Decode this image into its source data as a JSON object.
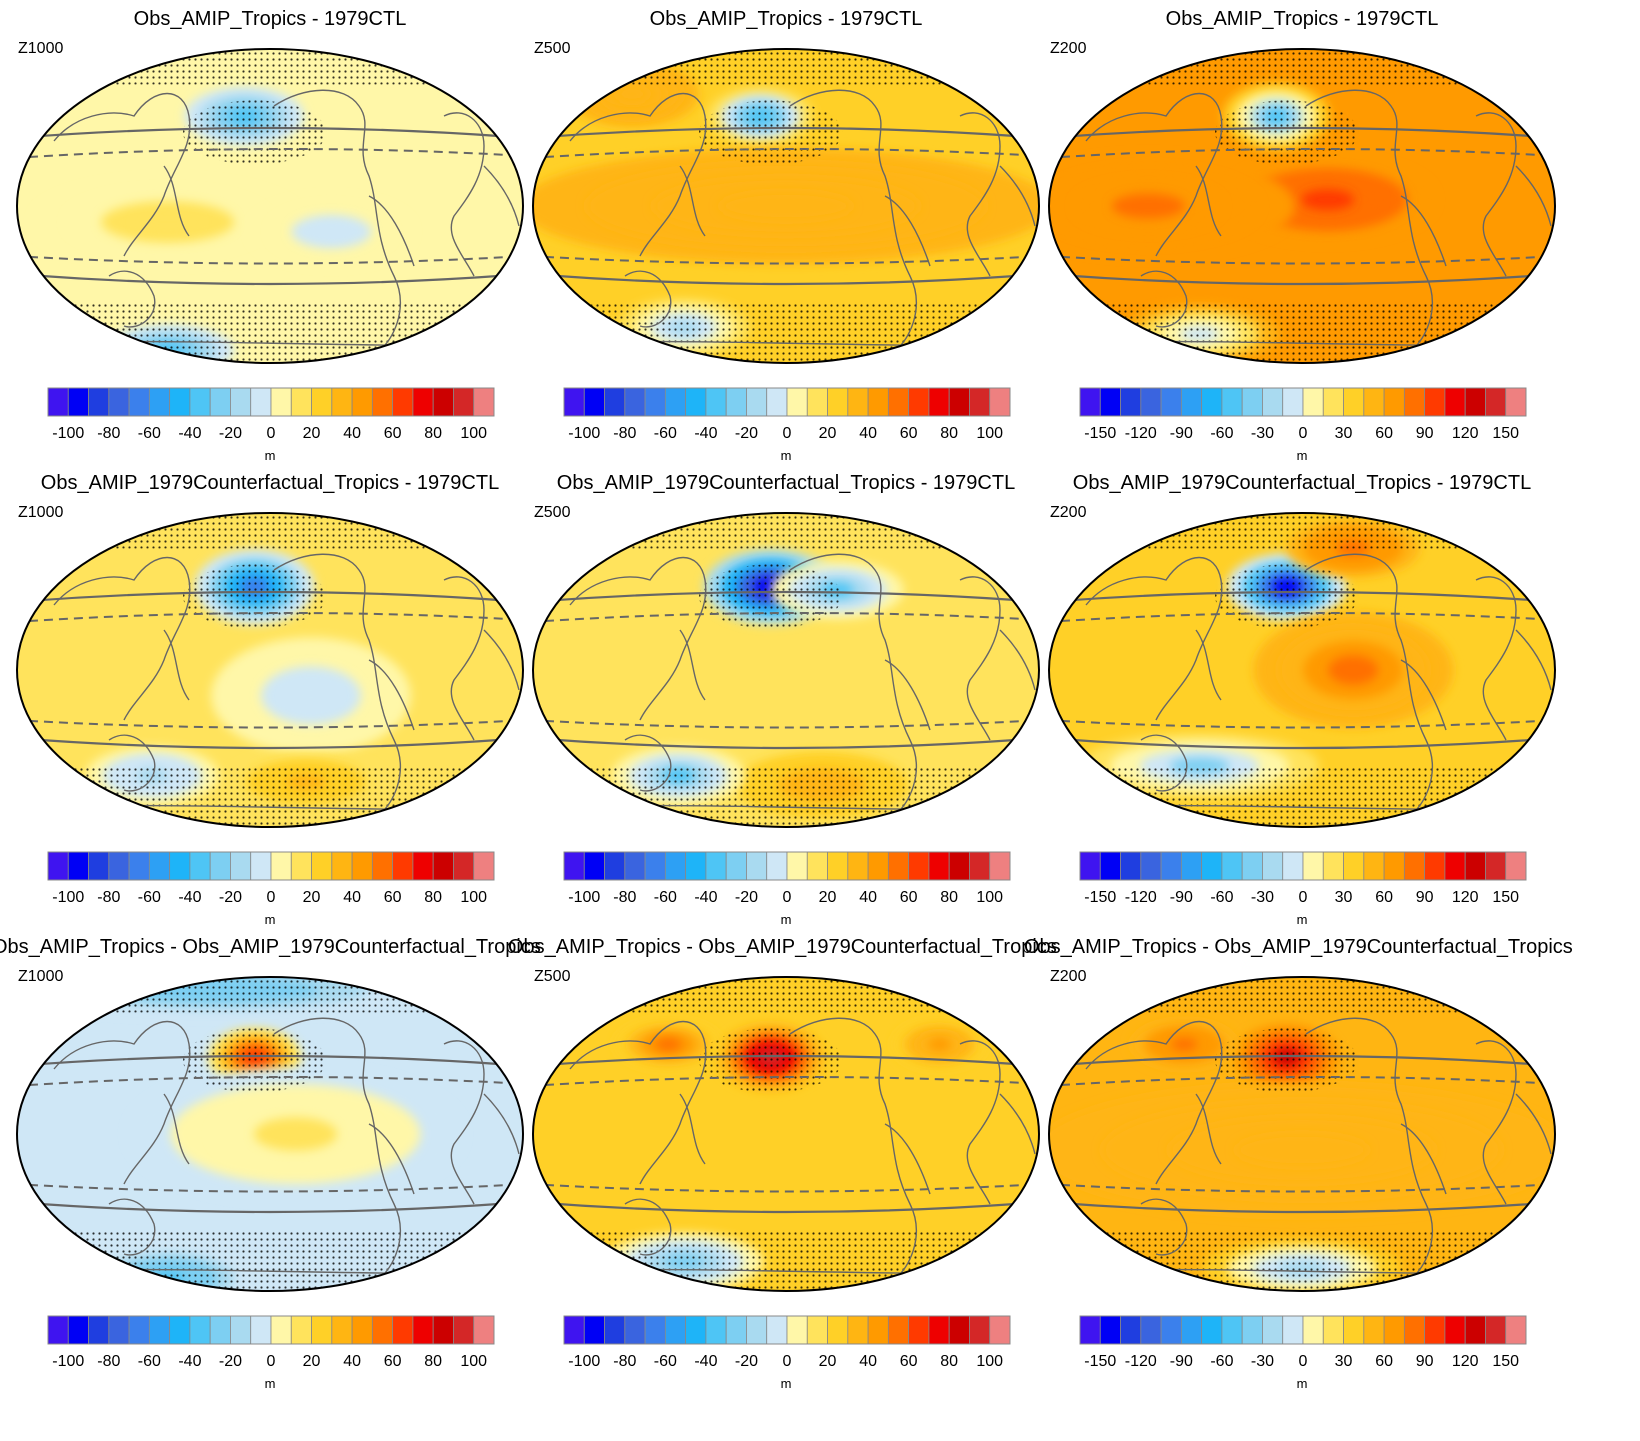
{
  "chart_data": {
    "type": "contour-map",
    "layout": "3 rows x 3 columns",
    "colorbar_colors": [
      "#3f14f0",
      "#0000f5",
      "#1f3ee0",
      "#3a64df",
      "#3b80ec",
      "#2da0f4",
      "#1eb4f8",
      "#4ec5f5",
      "#7dcff2",
      "#a9daf0",
      "#cfe7f6",
      "#fff7a8",
      "#ffe35c",
      "#ffd027",
      "#ffb512",
      "#ff9a00",
      "#ff7000",
      "#ff3a00",
      "#ee0000",
      "#cc0000",
      "#d42727",
      "#ee8080"
    ],
    "rows": [
      {
        "title": "Obs_AMIP_Tropics - 1979CTL",
        "panels": [
          {
            "var": "Z1000",
            "units": "m",
            "tick_labels": [
              "-100",
              "-80",
              "-60",
              "-40",
              "-20",
              "0",
              "20",
              "40",
              "60",
              "80",
              "100"
            ],
            "range": [
              -100,
              100
            ],
            "pattern": "weak"
          },
          {
            "var": "Z500",
            "units": "m",
            "tick_labels": [
              "-100",
              "-80",
              "-60",
              "-40",
              "-20",
              "0",
              "20",
              "40",
              "60",
              "80",
              "100"
            ],
            "range": [
              -100,
              100
            ],
            "pattern": "tropics-warm"
          },
          {
            "var": "Z200",
            "units": "m",
            "tick_labels": [
              "-150",
              "-120",
              "-90",
              "-60",
              "-30",
              "0",
              "30",
              "60",
              "90",
              "120",
              "150"
            ],
            "range": [
              -150,
              150
            ],
            "pattern": "tropics-hot"
          }
        ]
      },
      {
        "title": "Obs_AMIP_1979Counterfactual_Tropics - 1979CTL",
        "panels": [
          {
            "var": "Z1000",
            "units": "m",
            "tick_labels": [
              "-100",
              "-80",
              "-60",
              "-40",
              "-20",
              "0",
              "20",
              "40",
              "60",
              "80",
              "100"
            ],
            "range": [
              -100,
              100
            ],
            "pattern": "low-pacific"
          },
          {
            "var": "Z500",
            "units": "m",
            "tick_labels": [
              "-100",
              "-80",
              "-60",
              "-40",
              "-20",
              "0",
              "20",
              "40",
              "60",
              "80",
              "100"
            ],
            "range": [
              -100,
              100
            ],
            "pattern": "low-pacific-strong"
          },
          {
            "var": "Z200",
            "units": "m",
            "tick_labels": [
              "-150",
              "-120",
              "-90",
              "-60",
              "-30",
              "0",
              "30",
              "60",
              "90",
              "120",
              "150"
            ],
            "range": [
              -150,
              150
            ],
            "pattern": "low-pacific-warm"
          }
        ]
      },
      {
        "title": "Obs_AMIP_Tropics - Obs_AMIP_1979Counterfactual_Tropics",
        "panels": [
          {
            "var": "Z1000",
            "units": "m",
            "tick_labels": [
              "-100",
              "-80",
              "-60",
              "-40",
              "-20",
              "0",
              "20",
              "40",
              "60",
              "80",
              "100"
            ],
            "range": [
              -100,
              100
            ],
            "pattern": "high-pacific-weak"
          },
          {
            "var": "Z500",
            "units": "m",
            "tick_labels": [
              "-100",
              "-80",
              "-60",
              "-40",
              "-20",
              "0",
              "20",
              "40",
              "60",
              "80",
              "100"
            ],
            "range": [
              -100,
              100
            ],
            "pattern": "high-pacific"
          },
          {
            "var": "Z200",
            "units": "m",
            "tick_labels": [
              "-150",
              "-120",
              "-90",
              "-60",
              "-30",
              "0",
              "30",
              "60",
              "90",
              "120",
              "150"
            ],
            "range": [
              -150,
              150
            ],
            "pattern": "high-pacific-warm"
          }
        ]
      }
    ]
  }
}
